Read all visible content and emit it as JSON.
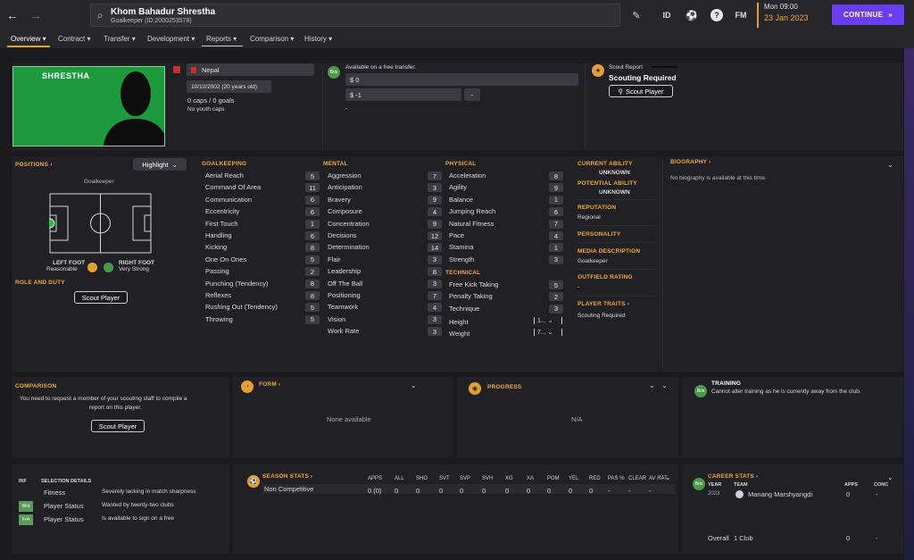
{
  "topbar": {
    "player_name": "Khom Bahadur Shrestha",
    "player_sub": "Goalkeeper (ID:2000253578)",
    "id_label": "ID",
    "fm_label": "FM",
    "help_label": "?",
    "date_day": "Mon 09:00",
    "date": "23 Jan 2023",
    "continue_label": "CONTINUE"
  },
  "tabs": [
    "Overview",
    "Contract",
    "Transfer",
    "Development",
    "Reports",
    "Comparison",
    "History"
  ],
  "profile": {
    "card_name": "SHRESTHA",
    "nation": "Nepal",
    "dob": "10/10/2002 (20 years old)",
    "caps": "0 caps / 0 goals",
    "youth_caps": "No youth caps"
  },
  "transfer": {
    "status": "Available on a free transfer.",
    "value": "$ 0",
    "wage": "$ -1",
    "extra": "-",
    "extra2": "-",
    "badge": "Bris"
  },
  "scout": {
    "label": "Scout Report",
    "status": "Scouting Required",
    "button": "Scout Player"
  },
  "positions": {
    "title": "POSITIONS",
    "highlight": "Highlight",
    "position_label": "Goalkeeper",
    "left_foot_label": "LEFT FOOT",
    "left_foot_value": "Reasonable",
    "right_foot_label": "RIGHT FOOT",
    "right_foot_value": "Very Strong",
    "role_title": "ROLE AND DUTY",
    "scout_button": "Scout Player"
  },
  "goalkeeping": {
    "title": "GOALKEEPING",
    "items": [
      {
        "name": "Aerial Reach",
        "value": "5"
      },
      {
        "name": "Command Of Area",
        "value": "11"
      },
      {
        "name": "Communication",
        "value": "6"
      },
      {
        "name": "Eccentricity",
        "value": "6"
      },
      {
        "name": "First Touch",
        "value": "1"
      },
      {
        "name": "Handling",
        "value": "6"
      },
      {
        "name": "Kicking",
        "value": "8"
      },
      {
        "name": "One On Ones",
        "value": "5"
      },
      {
        "name": "Passing",
        "value": "2"
      },
      {
        "name": "Punching (Tendency)",
        "value": "8"
      },
      {
        "name": "Reflexes",
        "value": "8"
      },
      {
        "name": "Rushing Out (Tendency)",
        "value": "5"
      },
      {
        "name": "Throwing",
        "value": "5"
      }
    ]
  },
  "mental": {
    "title": "MENTAL",
    "items": [
      {
        "name": "Aggression",
        "value": "7"
      },
      {
        "name": "Anticipation",
        "value": "3"
      },
      {
        "name": "Bravery",
        "value": "9"
      },
      {
        "name": "Composure",
        "value": "4"
      },
      {
        "name": "Concentration",
        "value": "9"
      },
      {
        "name": "Decisions",
        "value": "12"
      },
      {
        "name": "Determination",
        "value": "14"
      },
      {
        "name": "Flair",
        "value": "3"
      },
      {
        "name": "Leadership",
        "value": "8"
      },
      {
        "name": "Off The Ball",
        "value": "3"
      },
      {
        "name": "Positioning",
        "value": "7"
      },
      {
        "name": "Teamwork",
        "value": "4"
      },
      {
        "name": "Vision",
        "value": "3"
      },
      {
        "name": "Work Rate",
        "value": "3"
      }
    ]
  },
  "physical": {
    "title": "PHYSICAL",
    "items": [
      {
        "name": "Acceleration",
        "value": "8"
      },
      {
        "name": "Agility",
        "value": "9"
      },
      {
        "name": "Balance",
        "value": "1"
      },
      {
        "name": "Jumping Reach",
        "value": "6"
      },
      {
        "name": "Natural Fitness",
        "value": "7"
      },
      {
        "name": "Pace",
        "value": "4"
      },
      {
        "name": "Stamina",
        "value": "1"
      },
      {
        "name": "Strength",
        "value": "3"
      }
    ]
  },
  "technical": {
    "title": "TECHNICAL",
    "items": [
      {
        "name": "Free Kick Taking",
        "value": "5"
      },
      {
        "name": "Penalty Taking",
        "value": "2"
      },
      {
        "name": "Technique",
        "value": "3"
      }
    ],
    "height_label": "Height",
    "height_value": "1...",
    "weight_label": "Weight",
    "weight_value": "7..."
  },
  "info": {
    "current_ability_label": "CURRENT ABILITY",
    "current_ability_value": "UNKNOWN",
    "potential_ability_label": "POTENTIAL ABILITY",
    "potential_ability_value": "UNKNOWN",
    "reputation_label": "REPUTATION",
    "reputation_value": "Regional",
    "personality_label": "PERSONALITY",
    "media_label": "MEDIA DESCRIPTION",
    "media_value": "Goalkeeper",
    "outfield_label": "OUTFIELD RATING",
    "outfield_value": "-",
    "traits_label": "PLAYER TRAITS",
    "traits_value": "Scouting Required"
  },
  "biography": {
    "title": "BIOGRAPHY",
    "text": "No biography is available at this time."
  },
  "comparison": {
    "title": "COMPARISON",
    "text1": "You need to request a member of your scouting staff to compile a",
    "text2": "report on this player.",
    "button": "Scout Player"
  },
  "form": {
    "title": "FORM",
    "text": "None available"
  },
  "progress": {
    "title": "PROGRESS",
    "text": "N/A"
  },
  "training": {
    "title": "TRAINING",
    "text": "Cannot alter training as he is currently away from the club.",
    "badge": "Bris"
  },
  "selection": {
    "inf_label": "INF",
    "title": "SELECTION DETAILS",
    "rows": [
      {
        "badge": "",
        "label": "Fitness",
        "value": "Severely lacking in match sharpness"
      },
      {
        "badge": "Wnt",
        "label": "Player Status",
        "value": "Wanted by twenty-two clubs"
      },
      {
        "badge": "FrA",
        "label": "Player Status",
        "value": "Is available to sign on a free"
      }
    ]
  },
  "season": {
    "title": "SEASON STATS",
    "columns": [
      "APPS",
      "ALL",
      "SHO",
      "SVT",
      "SVP",
      "SVH",
      "XG",
      "XA",
      "POM",
      "YEL",
      "RED",
      "PAS %",
      "CLEAR",
      "AV RAT"
    ],
    "row_label": "Non Competitive",
    "values": [
      "0 (0)",
      "0",
      "0",
      "0",
      "0",
      "0",
      "0",
      "0",
      "0",
      "0",
      "0",
      "-",
      "-",
      "-"
    ]
  },
  "career": {
    "title": "CAREER STATS",
    "year_label": "YEAR",
    "team_label": "TEAM",
    "apps_label": "APPS",
    "conc_label": "CONC",
    "year": "2023",
    "team": "Manang Marshyangdi",
    "apps": "0",
    "conc": "-",
    "total_label": "Overall",
    "total_clubs": "1 Club",
    "total_apps": "0",
    "total_conc": "-",
    "badge": "Bris"
  }
}
